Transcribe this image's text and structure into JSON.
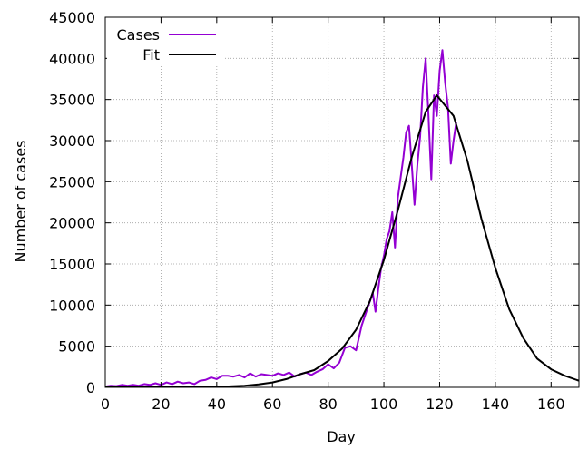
{
  "chart_data": {
    "type": "line",
    "xlabel": "Day",
    "ylabel": "Number of cases",
    "xlim": [
      0,
      170
    ],
    "ylim": [
      0,
      45000
    ],
    "xticks": [
      0,
      20,
      40,
      60,
      80,
      100,
      120,
      140,
      160
    ],
    "yticks": [
      0,
      5000,
      10000,
      15000,
      20000,
      25000,
      30000,
      35000,
      40000,
      45000
    ],
    "grid": true,
    "legend_position": "top-left",
    "series": [
      {
        "name": "Cases",
        "color": "#9400d3",
        "x": [
          0,
          2,
          4,
          6,
          8,
          10,
          12,
          14,
          16,
          18,
          20,
          22,
          24,
          26,
          28,
          30,
          32,
          34,
          36,
          38,
          40,
          42,
          44,
          46,
          48,
          50,
          52,
          54,
          56,
          58,
          60,
          62,
          64,
          66,
          68,
          70,
          72,
          74,
          76,
          78,
          80,
          82,
          84,
          86,
          88,
          90,
          92,
          94,
          96,
          97,
          98,
          99,
          100,
          101,
          102,
          103,
          104,
          105,
          106,
          107,
          108,
          109,
          110,
          111,
          112,
          113,
          114,
          115,
          116,
          117,
          118,
          119,
          120,
          121,
          122,
          123,
          124,
          125,
          126
        ],
        "y": [
          100,
          200,
          150,
          300,
          200,
          300,
          200,
          400,
          300,
          500,
          300,
          600,
          400,
          700,
          500,
          600,
          400,
          800,
          900,
          1200,
          1000,
          1400,
          1400,
          1300,
          1500,
          1200,
          1700,
          1300,
          1600,
          1500,
          1400,
          1700,
          1500,
          1800,
          1300,
          1600,
          1800,
          1500,
          1900,
          2200,
          2800,
          2300,
          3000,
          4800,
          5000,
          4500,
          7500,
          9500,
          11500,
          9200,
          12000,
          14500,
          16000,
          18000,
          19000,
          21300,
          17000,
          23000,
          25500,
          28000,
          31000,
          31800,
          27000,
          22200,
          27000,
          30500,
          36500,
          40000,
          33000,
          25300,
          35500,
          33000,
          38500,
          41000,
          37000,
          34000,
          27200,
          30000,
          32300
        ]
      },
      {
        "name": "Fit",
        "color": "#000000",
        "x": [
          0,
          10,
          20,
          30,
          40,
          50,
          55,
          60,
          65,
          70,
          75,
          80,
          85,
          90,
          95,
          100,
          105,
          110,
          115,
          119,
          125,
          130,
          135,
          140,
          145,
          150,
          155,
          160,
          165,
          170
        ],
        "y": [
          0,
          0,
          0,
          0,
          60,
          200,
          350,
          600,
          1000,
          1600,
          2100,
          3200,
          4700,
          7000,
          10500,
          15500,
          21500,
          28000,
          33500,
          35500,
          33000,
          27500,
          20500,
          14500,
          9500,
          6000,
          3500,
          2200,
          1400,
          800
        ]
      }
    ]
  }
}
